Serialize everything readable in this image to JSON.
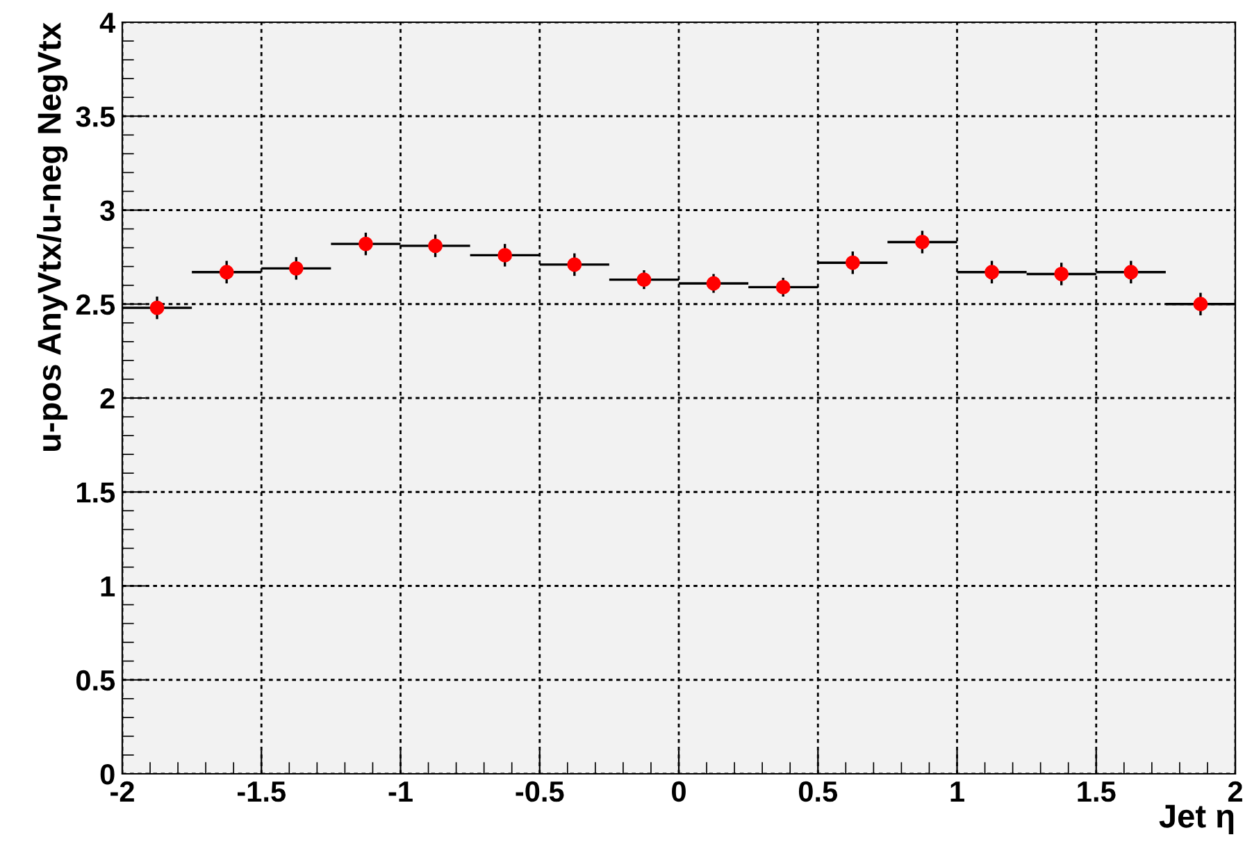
{
  "chart_data": {
    "type": "scatter",
    "xlabel": "Jet η",
    "ylabel": "u-pos AnyVtx/u-neg NegVtx",
    "x": [
      -1.875,
      -1.625,
      -1.375,
      -1.125,
      -0.875,
      -0.625,
      -0.375,
      -0.125,
      0.125,
      0.375,
      0.625,
      0.875,
      1.125,
      1.375,
      1.625,
      1.875
    ],
    "series": [
      {
        "color": "#ff0000",
        "values": [
          2.48,
          2.67,
          2.69,
          2.82,
          2.81,
          2.76,
          2.71,
          2.63,
          2.61,
          2.59,
          2.72,
          2.83,
          2.67,
          2.66,
          2.67,
          2.5
        ],
        "errors": [
          0.06,
          0.06,
          0.06,
          0.06,
          0.06,
          0.06,
          0.06,
          0.05,
          0.05,
          0.05,
          0.06,
          0.06,
          0.06,
          0.06,
          0.06,
          0.06
        ],
        "xerrors": [
          0.125,
          0.125,
          0.125,
          0.125,
          0.125,
          0.125,
          0.125,
          0.125,
          0.125,
          0.125,
          0.125,
          0.125,
          0.125,
          0.125,
          0.125,
          0.125
        ]
      }
    ],
    "xlim": [
      -2,
      2
    ],
    "xticks": [
      -2,
      -1.5,
      -1,
      -0.5,
      0,
      0.5,
      1,
      1.5,
      2
    ],
    "ylim": [
      0,
      4
    ],
    "yticks": [
      0,
      0.5,
      1,
      1.5,
      2,
      2.5,
      3,
      3.5,
      4
    ],
    "grid": true,
    "marker": "circle"
  }
}
